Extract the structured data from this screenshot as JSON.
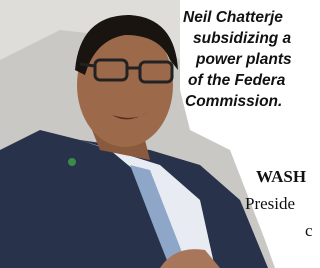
{
  "caption": {
    "lines": [
      "Neil Chatterje",
      "subsidizing a",
      "power plants",
      "of the Federa",
      "Commission."
    ]
  },
  "body": {
    "dateline": "WASH",
    "lines": [
      "Preside",
      "c"
    ]
  }
}
